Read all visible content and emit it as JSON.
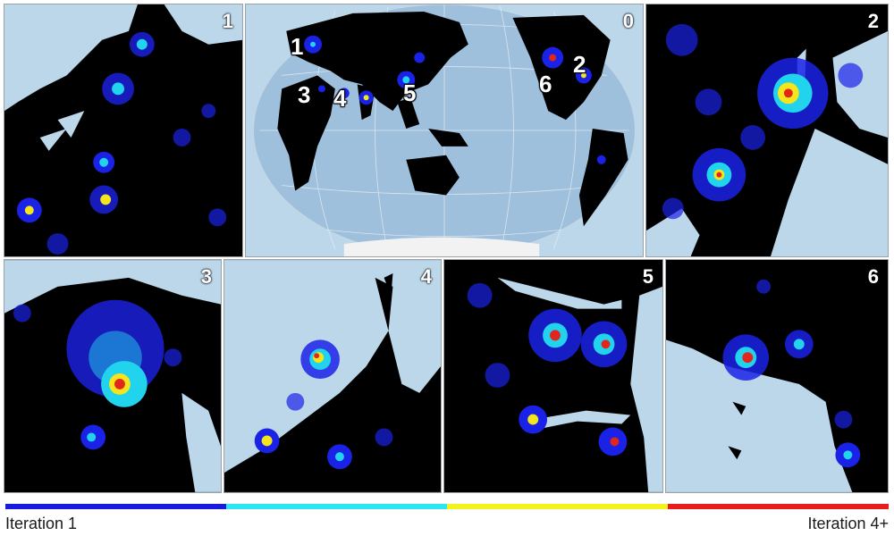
{
  "panels": [
    {
      "id": "1",
      "label": "1"
    },
    {
      "id": "0",
      "label": "0"
    },
    {
      "id": "2",
      "label": "2"
    },
    {
      "id": "3",
      "label": "3"
    },
    {
      "id": "4",
      "label": "4"
    },
    {
      "id": "5",
      "label": "5"
    },
    {
      "id": "6",
      "label": "6"
    }
  ],
  "globe_markers": [
    "1",
    "2",
    "3",
    "4",
    "5",
    "6"
  ],
  "legend": {
    "start_label": "Iteration 1",
    "end_label": "Iteration 4+",
    "colors": [
      "#1a1adf",
      "#2ee6f2",
      "#f4f21c",
      "#e81c1c"
    ]
  },
  "colors": {
    "sea": "#bcd6ea",
    "land_dark": "#000000",
    "lights_low": "#1b22e8",
    "lights_mid": "#22d3ee",
    "lights_high": "#f5e51b",
    "lights_peak": "#e3261b"
  }
}
